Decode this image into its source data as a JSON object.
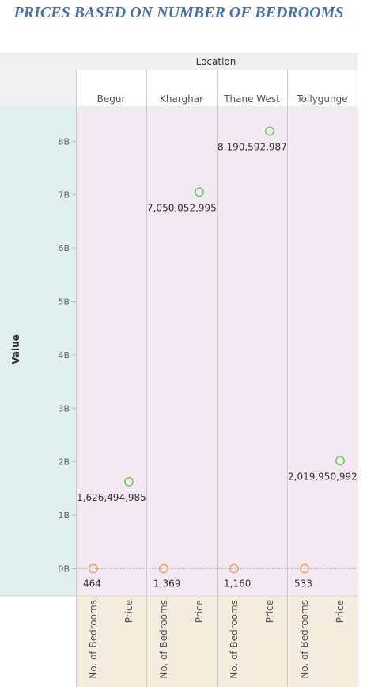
{
  "title": "PRICES BASED ON  NUMBER OF BEDROOMS",
  "chart_data": {
    "type": "scatter",
    "column_header": "Location",
    "ylabel": "Value",
    "ylim": [
      0,
      8600000000
    ],
    "y_ticks": [
      {
        "value": 0,
        "label": "0B"
      },
      {
        "value": 1000000000,
        "label": "1B"
      },
      {
        "value": 2000000000,
        "label": "2B"
      },
      {
        "value": 3000000000,
        "label": "3B"
      },
      {
        "value": 4000000000,
        "label": "4B"
      },
      {
        "value": 5000000000,
        "label": "5B"
      },
      {
        "value": 6000000000,
        "label": "6B"
      },
      {
        "value": 7000000000,
        "label": "7B"
      },
      {
        "value": 8000000000,
        "label": "8B"
      }
    ],
    "measures": [
      "No. of Bedrooms",
      "Price"
    ],
    "measure_colors": {
      "No. of Bedrooms": "#f5a36a",
      "Price": "#7ac66a"
    },
    "categories": [
      "Begur",
      "Kharghar",
      "Thane West",
      "Tollygunge"
    ],
    "series": [
      {
        "measure": "No. of Bedrooms",
        "values": [
          464,
          1369,
          1160,
          533
        ],
        "labels": [
          "464",
          "1,369",
          "1,160",
          "533"
        ]
      },
      {
        "measure": "Price",
        "values": [
          1626494985,
          7050052995,
          8190592987,
          2019950992
        ],
        "labels": [
          "1,626,494,985",
          "7,050,052,995",
          "8,190,592,987",
          "2,019,950,992"
        ]
      }
    ],
    "grid": false,
    "zero_line": true
  },
  "colors": {
    "plot_bg": "#f2e9f3",
    "row_header_bg": "#dff0ee",
    "column_header_bg": "#efefef",
    "bottom_axis_bg": "#f4ecdc",
    "title": "#4a72a8"
  }
}
